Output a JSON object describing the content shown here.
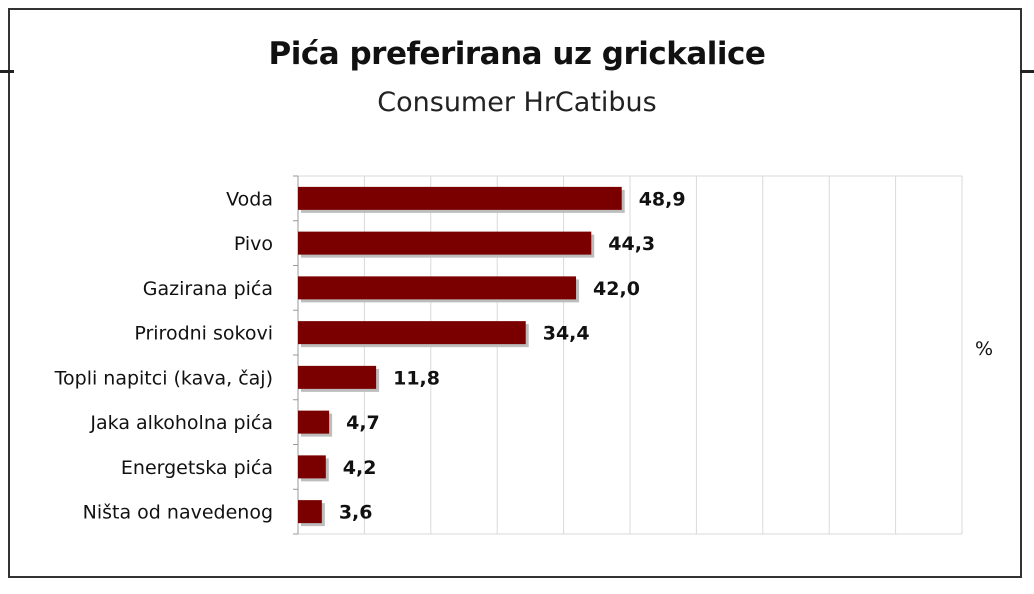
{
  "title": "Pića preferirana uz grickalice",
  "subtitle": "Consumer HrCatibus",
  "colors": {
    "bar": "#7a0000",
    "grid": "#d9d9d9",
    "axis": "#999999"
  },
  "chart_data": {
    "type": "bar",
    "orientation": "horizontal",
    "title": "Pića preferirana uz grickalice",
    "subtitle": "Consumer HrCatibus",
    "categories": [
      "Voda",
      "Pivo",
      "Gazirana pića",
      "Prirodni sokovi",
      "Topli napitci (kava, čaj)",
      "Jaka alkoholna pića",
      "Energetska pića",
      "Ništa od navedenog"
    ],
    "values": [
      48.9,
      44.3,
      42.0,
      34.4,
      11.8,
      4.7,
      4.2,
      3.6
    ],
    "value_labels": [
      "48,9",
      "44,3",
      "42,0",
      "34,4",
      "11,8",
      "4,7",
      "4,2",
      "3,6"
    ],
    "unit_label": "%",
    "xlim": [
      0,
      100
    ],
    "grid": true,
    "legend": "none"
  }
}
